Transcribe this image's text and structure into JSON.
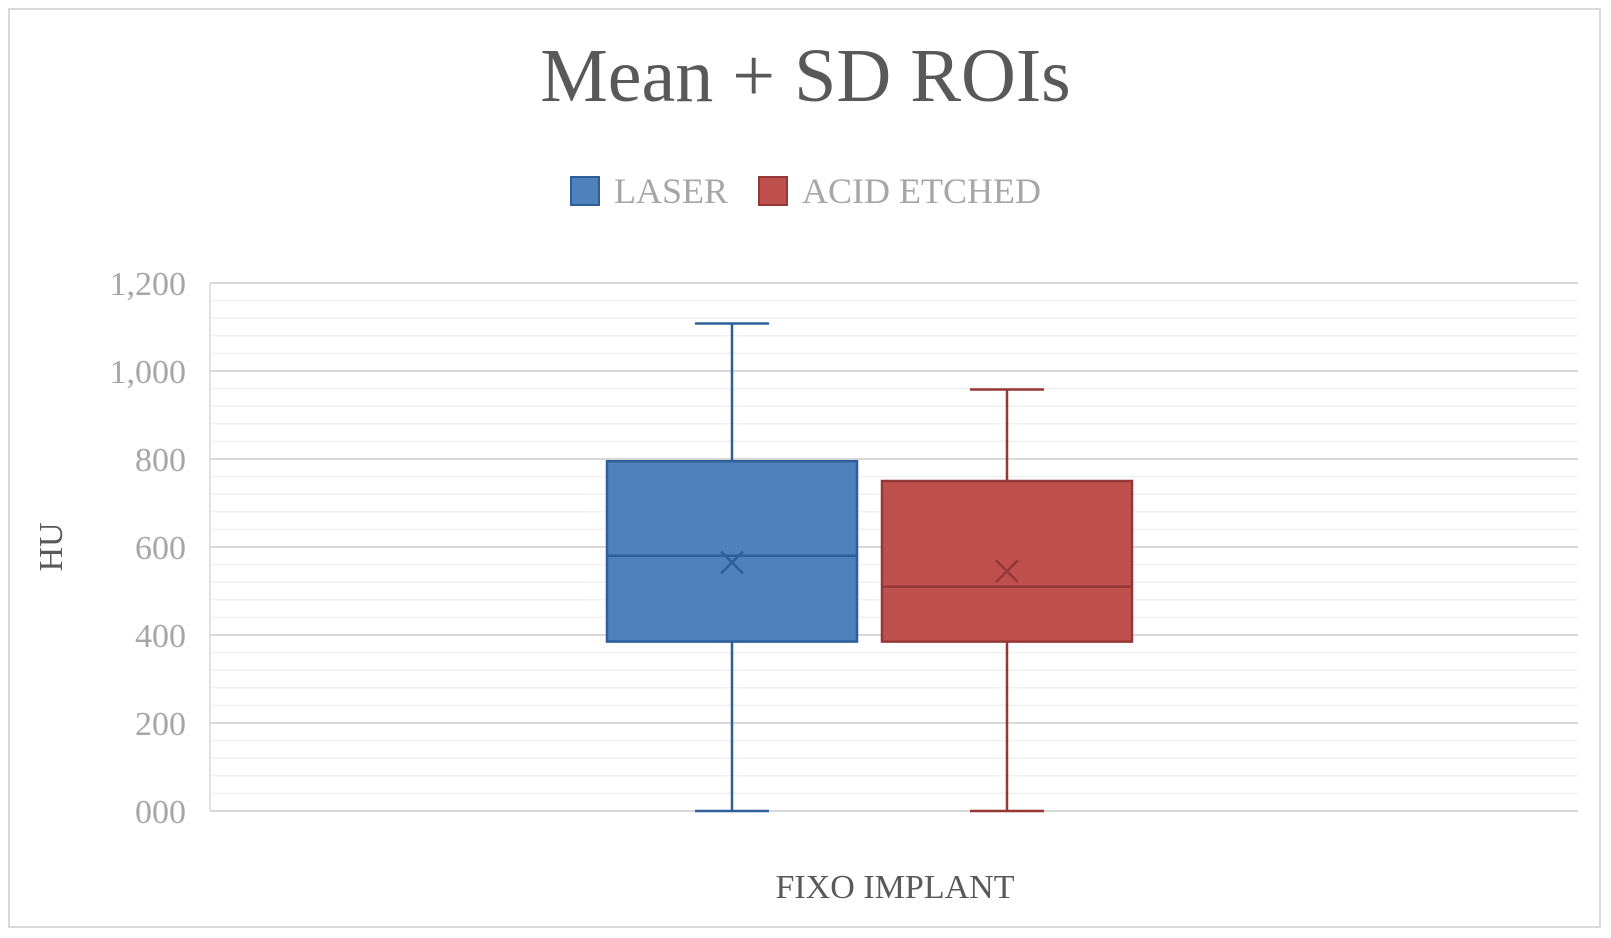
{
  "chart_data": {
    "type": "box",
    "title": "Mean + SD ROIs",
    "xlabel": "FIXO IMPLANT",
    "ylabel": "HU",
    "ylim": [
      0,
      1200
    ],
    "y_ticks": [
      0,
      200,
      400,
      600,
      800,
      1000,
      1200
    ],
    "y_tick_labels": [
      "000",
      "200",
      "400",
      "600",
      "800",
      "1,000",
      "1,200"
    ],
    "grid": true,
    "legend_position": "top-center",
    "categories": [
      "FIXO IMPLANT"
    ],
    "series": [
      {
        "name": "LASER",
        "color": "#4f81bd",
        "edge_color": "#2f5f9a",
        "min": 0,
        "q1": 385,
        "median": 580,
        "mean": 565,
        "q3": 795,
        "max": 1108
      },
      {
        "name": "ACID ETCHED",
        "color": "#c0504d",
        "edge_color": "#953735",
        "min": 0,
        "q1": 385,
        "median": 510,
        "mean": 545,
        "q3": 750,
        "max": 958
      }
    ]
  }
}
